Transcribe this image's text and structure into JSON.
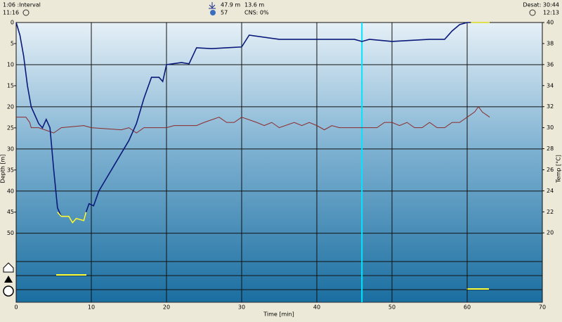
{
  "header": {
    "interval": "1:06 :Interval",
    "start_time": "11:16",
    "max_depth": "47.9 m",
    "avg_depth": "13.6 m",
    "o2": "57",
    "cns": "CNS: 0%",
    "desat": "Desat: 30:44",
    "end_time": "12:13"
  },
  "chart_data": {
    "type": "line",
    "x_label": "Time [min]",
    "y_label": "Depth [m]",
    "y2_label": "Temp [°C]",
    "xlim": [
      0,
      70
    ],
    "xticks": [
      0,
      10,
      20,
      30,
      40,
      50,
      60,
      70
    ],
    "ylim": [
      0,
      66.4
    ],
    "yticks": [
      0,
      5,
      10,
      15,
      20,
      25,
      30,
      35,
      40,
      45,
      50
    ],
    "y2lim": [
      40,
      13.4
    ],
    "y2ticks": [
      20,
      22,
      24,
      26,
      28,
      30,
      32,
      34,
      36,
      38,
      40
    ],
    "cursor_x": 46,
    "cursor_color": "#00e5ff",
    "series": [
      {
        "color": "#0a1a7a",
        "x": [
          0,
          0.5,
          1,
          1.5,
          2,
          3,
          3.5,
          4,
          4.5,
          5,
          5.5,
          6,
          7,
          7.5,
          8,
          9,
          9.3,
          9.7,
          10.3,
          11,
          12,
          13,
          14,
          15,
          16,
          17,
          18,
          19,
          19.5,
          20,
          22,
          23,
          24,
          26,
          28,
          30,
          31,
          35,
          40,
          45,
          46,
          47,
          50,
          55,
          57,
          58,
          59,
          60,
          63
        ],
        "values": [
          0,
          3,
          8,
          15,
          20,
          24,
          25,
          23,
          25,
          35,
          44,
          46,
          46,
          47.5,
          46.5,
          47,
          45,
          43,
          43.5,
          40,
          37,
          34,
          31,
          28,
          24,
          18,
          13,
          13,
          14,
          10,
          9.5,
          9.8,
          6,
          6.2,
          6,
          5.8,
          3,
          4,
          4,
          4,
          4.5,
          4,
          4.5,
          4,
          4,
          2,
          0.5,
          0,
          0
        ]
      },
      {
        "color": "#ffff33",
        "x": [
          5.5,
          6,
          7,
          7.5,
          8,
          9,
          9.3
        ],
        "values": [
          45,
          46,
          46,
          47.5,
          46.5,
          47,
          45
        ]
      },
      {
        "color": "#ffff33",
        "x": [
          60.5,
          63
        ],
        "values": [
          0,
          0
        ]
      },
      {
        "color": "#8b2a2a",
        "axis": "y2",
        "x": [
          0,
          1.3,
          1.8,
          2,
          3,
          5,
          6,
          9,
          10,
          14,
          15,
          16,
          17,
          20,
          21,
          24,
          25,
          27,
          28,
          29,
          30,
          32,
          33,
          34,
          35,
          37,
          38,
          39,
          40,
          41,
          42,
          43,
          46,
          48,
          49,
          50,
          51,
          52,
          53,
          54,
          55,
          56,
          57,
          58,
          59,
          60,
          61,
          61.5,
          62,
          63
        ],
        "values": [
          31,
          31,
          30.5,
          30,
          30,
          29.5,
          30,
          30.2,
          30,
          29.8,
          30,
          29.5,
          30,
          30,
          30.2,
          30.2,
          30.5,
          31,
          30.5,
          30.5,
          31,
          30.5,
          30.2,
          30.5,
          30,
          30.5,
          30.2,
          30.5,
          30.2,
          29.8,
          30.2,
          30,
          30,
          30,
          30.5,
          30.5,
          30.2,
          30.5,
          30,
          30,
          30.5,
          30,
          30,
          30.5,
          30.5,
          31,
          31.5,
          32,
          31.5,
          31
        ]
      }
    ]
  }
}
